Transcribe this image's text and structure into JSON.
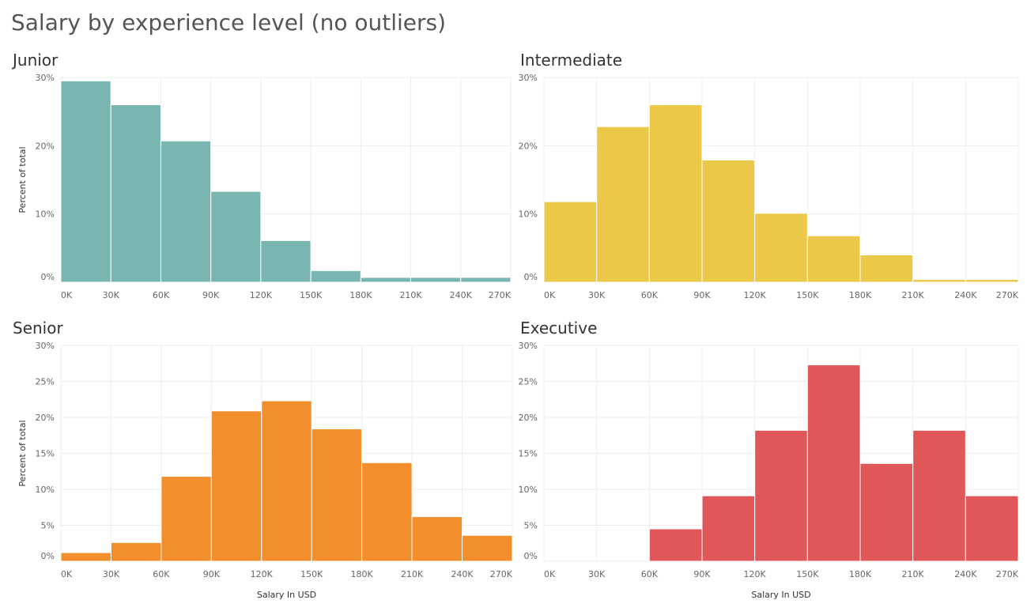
{
  "title": "Salary by experience level (no outliers)",
  "chart_data": [
    {
      "type": "bar",
      "title": "Junior",
      "bin_edges": [
        0,
        30000,
        60000,
        90000,
        120000,
        150000,
        180000,
        210000,
        240000,
        270000
      ],
      "values": [
        29.5,
        26,
        20.7,
        13.3,
        6.1,
        1.7,
        0.7,
        0.7,
        0.7
      ],
      "x_ticks": [
        "0K",
        "30K",
        "60K",
        "90K",
        "120K",
        "150K",
        "180K",
        "210K",
        "240K",
        "270K"
      ],
      "y_ticks": [
        "0%",
        "10%",
        "20%",
        "30%"
      ],
      "ylim": [
        0,
        30
      ],
      "xlabel": "",
      "ylabel": "Percent of total",
      "color": "#7ab6b1"
    },
    {
      "type": "bar",
      "title": "Intermediate",
      "bin_edges": [
        0,
        30000,
        60000,
        90000,
        120000,
        150000,
        180000,
        210000,
        240000,
        270000
      ],
      "values": [
        11.8,
        22.8,
        26,
        17.9,
        10.1,
        6.8,
        4,
        0.4,
        0.4
      ],
      "x_ticks": [
        "0K",
        "30K",
        "60K",
        "90K",
        "120K",
        "150K",
        "180K",
        "210K",
        "240K",
        "270K"
      ],
      "y_ticks": [
        "0%",
        "10%",
        "20%",
        "30%"
      ],
      "ylim": [
        0,
        30
      ],
      "xlabel": "",
      "ylabel": "",
      "color": "#ebc847"
    },
    {
      "type": "bar",
      "title": "Senior",
      "bin_edges": [
        0,
        30000,
        60000,
        90000,
        120000,
        150000,
        180000,
        210000,
        240000,
        270000
      ],
      "values": [
        1.2,
        2.6,
        11.8,
        20.9,
        22.3,
        18.4,
        13.7,
        6.2,
        3.6
      ],
      "x_ticks": [
        "0K",
        "30K",
        "60K",
        "90K",
        "120K",
        "150K",
        "180K",
        "210K",
        "240K",
        "270K"
      ],
      "y_ticks": [
        "0%",
        "5%",
        "10%",
        "15%",
        "20%",
        "25%",
        "30%"
      ],
      "ylim": [
        0,
        30
      ],
      "xlabel": "Salary In USD",
      "ylabel": "Percent of total",
      "color": "#f28f2c"
    },
    {
      "type": "bar",
      "title": "Executive",
      "bin_edges": [
        0,
        30000,
        60000,
        90000,
        120000,
        150000,
        180000,
        210000,
        240000,
        270000
      ],
      "values": [
        0,
        0,
        4.5,
        9.1,
        18.2,
        27.3,
        13.6,
        18.2,
        9.1
      ],
      "x_ticks": [
        "0K",
        "30K",
        "60K",
        "90K",
        "120K",
        "150K",
        "180K",
        "210K",
        "240K",
        "270K"
      ],
      "y_ticks": [
        "0%",
        "5%",
        "10%",
        "15%",
        "20%",
        "25%",
        "30%"
      ],
      "ylim": [
        0,
        30
      ],
      "xlabel": "Salary In USD",
      "ylabel": "",
      "color": "#e15759"
    }
  ]
}
